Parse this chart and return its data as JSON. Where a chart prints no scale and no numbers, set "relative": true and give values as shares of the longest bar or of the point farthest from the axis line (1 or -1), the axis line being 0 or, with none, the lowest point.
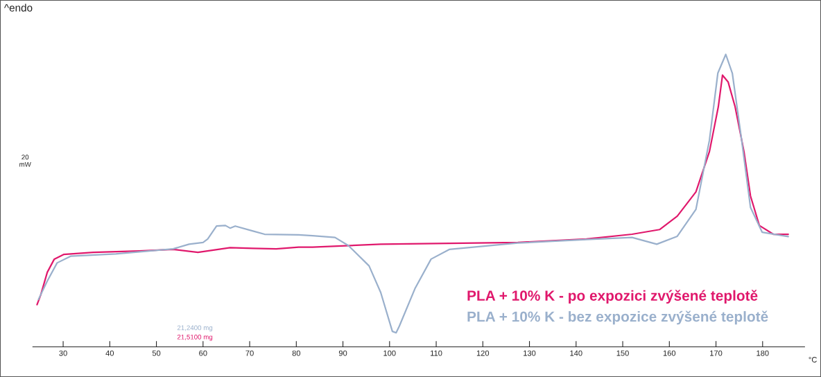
{
  "chart_data": {
    "type": "line",
    "relative": true,
    "xlabel": "°C",
    "xlim": [
      23.5,
      189
    ],
    "xticks": [
      30,
      40,
      50,
      60,
      70,
      80,
      90,
      100,
      110,
      120,
      130,
      140,
      150,
      160,
      170,
      180
    ],
    "grid": false,
    "legend": "bottom right",
    "marker": "none",
    "line_style": "solid",
    "annotations": [
      "^endo",
      "20\nmW",
      "21,2400 mg",
      "21,5100 mg"
    ],
    "series": [
      {
        "name": "PLA + 10% K - po expozici zvýšené teplotě",
        "color": "#e0186c",
        "x": [
          24.4,
          25.2,
          26.6,
          28.1,
          30.1,
          36.5,
          46.3,
          53.6,
          58.9,
          65.8,
          70.7,
          75.7,
          80.5,
          83.5,
          98.1,
          127.5,
          142.2,
          152.0,
          157.9,
          161.7,
          165.7,
          168.6,
          170.5,
          171.4,
          172.6,
          174.1,
          176.0,
          177.4,
          179.3,
          182.3,
          185.5
        ],
        "values": [
          0.144,
          0.178,
          0.255,
          0.3,
          0.316,
          0.323,
          0.328,
          0.333,
          0.323,
          0.339,
          0.337,
          0.335,
          0.341,
          0.341,
          0.351,
          0.357,
          0.369,
          0.385,
          0.401,
          0.447,
          0.53,
          0.668,
          0.821,
          0.929,
          0.906,
          0.821,
          0.668,
          0.516,
          0.415,
          0.385,
          0.385
        ]
      },
      {
        "name": "PLA + 10% K - bez expozice zvýšené teplotě",
        "color": "#9ab0cc",
        "x": [
          24.7,
          26.6,
          28.7,
          31.6,
          41.3,
          53.6,
          57.0,
          60.0,
          61.0,
          62.9,
          64.8,
          65.8,
          66.9,
          70.7,
          73.2,
          80.5,
          83.5,
          88.3,
          91.2,
          95.6,
          98.1,
          100.6,
          101.4,
          102.1,
          105.5,
          108.9,
          112.8,
          127.5,
          142.2,
          152.0,
          157.3,
          161.7,
          165.7,
          168.6,
          170.4,
          172.1,
          173.5,
          175.5,
          177.4,
          179.9,
          185.5
        ],
        "values": [
          0.162,
          0.225,
          0.287,
          0.31,
          0.318,
          0.335,
          0.351,
          0.357,
          0.369,
          0.413,
          0.415,
          0.406,
          0.413,
          0.396,
          0.385,
          0.383,
          0.38,
          0.374,
          0.346,
          0.277,
          0.186,
          0.053,
          0.048,
          0.071,
          0.201,
          0.3,
          0.333,
          0.355,
          0.367,
          0.374,
          0.351,
          0.378,
          0.47,
          0.707,
          0.936,
          1.0,
          0.936,
          0.707,
          0.477,
          0.392,
          0.377
        ]
      }
    ]
  }
}
